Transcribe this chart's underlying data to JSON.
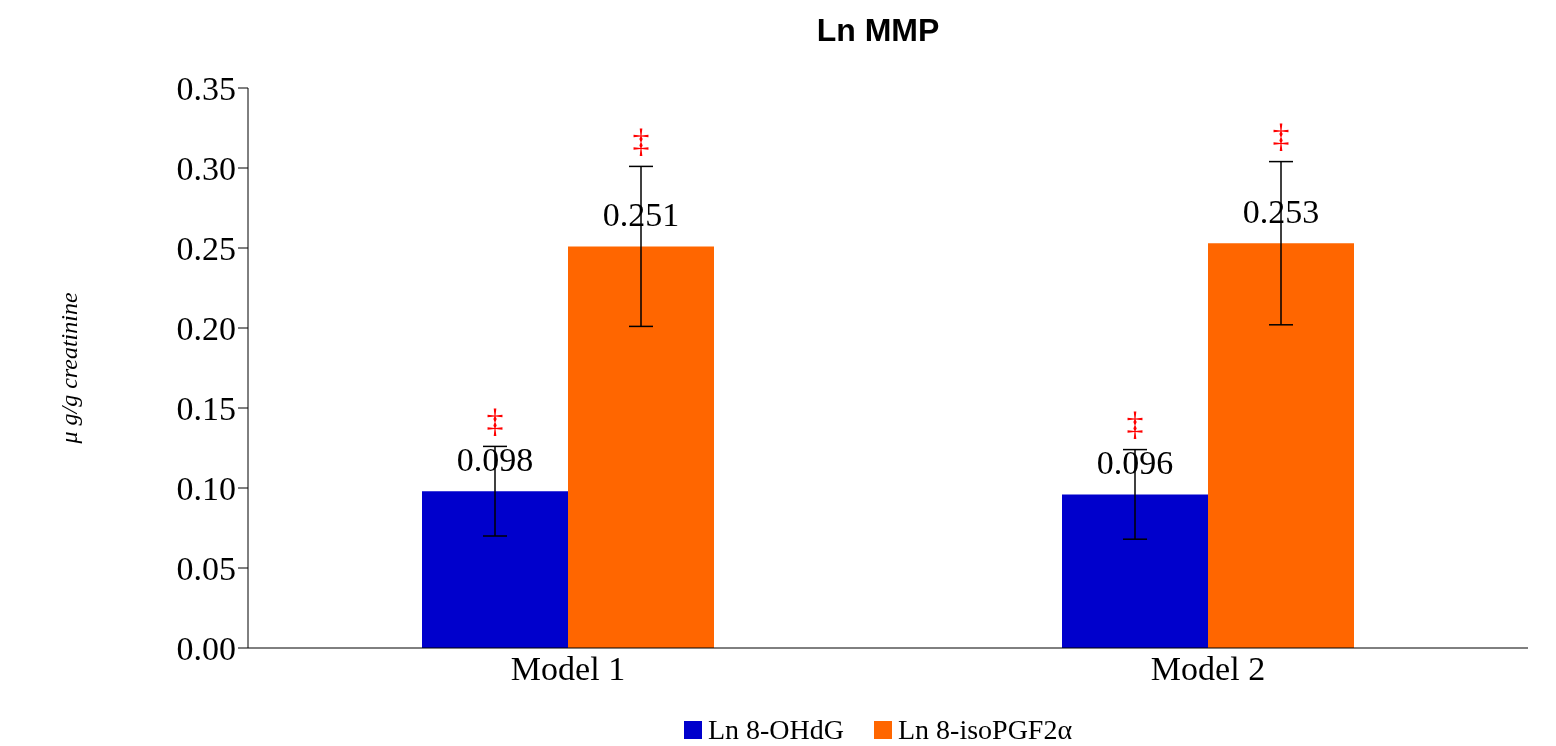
{
  "chart_data": {
    "type": "bar",
    "title": "Ln MMP",
    "ylabel": "μ g/g creatinine",
    "categories": [
      "Model 1",
      "Model 2"
    ],
    "series": [
      {
        "name": "Ln 8-OHdG",
        "color": "#0000cc",
        "values": [
          0.098,
          0.096
        ],
        "errors": [
          0.028,
          0.028
        ]
      },
      {
        "name": "Ln 8-isoPGF2α",
        "color": "#ff6600",
        "values": [
          0.251,
          0.253
        ],
        "errors": [
          0.05,
          0.051
        ]
      }
    ],
    "ylim": [
      0,
      0.35
    ],
    "yticks": [
      {
        "value": 0,
        "label": "0.00"
      },
      0.05,
      {
        "value": 0.1,
        "label": "0.10"
      },
      0.15,
      {
        "value": 0.2,
        "label": "0.20"
      },
      0.25,
      {
        "value": 0.3,
        "label": "0.30"
      },
      0.35
    ],
    "data_labels": true,
    "legend": "bottom",
    "grid": false,
    "annotations": [
      "‡",
      "‡",
      "‡",
      "‡"
    ]
  }
}
